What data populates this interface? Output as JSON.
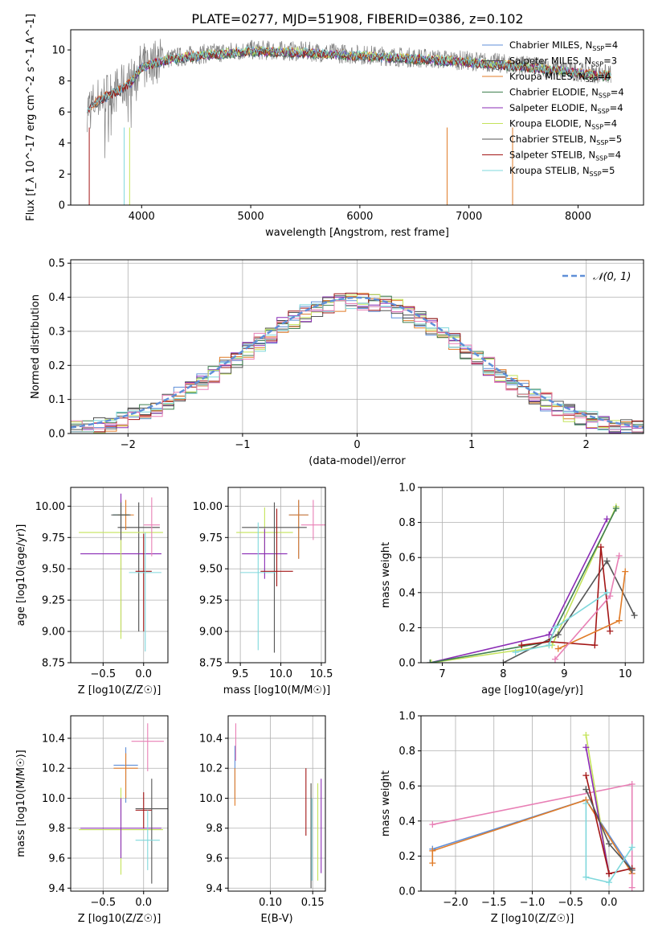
{
  "figure": {
    "title": "PLATE=0277, MJD=51908, FIBERID=0386, z=0.102"
  },
  "colors": {
    "Chabrier MILES": "#5f8fd8",
    "Salpeter MILES": "#4c4c4c",
    "Kroupa MILES": "#e07b27",
    "Chabrier ELODIE": "#3f7f4f",
    "Salpeter ELODIE": "#8a2bb5",
    "Kroupa ELODIE": "#c4e35a",
    "Chabrier STELIB": "#555555",
    "Salpeter STELIB": "#a31515",
    "Kroupa STELIB": "#7fd8dc",
    "pink": "#e87fb5",
    "data": "#808080",
    "normal": "#5f8fd8"
  },
  "chart_data": [
    {
      "id": "spectrum",
      "type": "line",
      "xlabel": "wavelength [Angstrom, rest frame]",
      "ylabel": "Flux [f_λ 10^-17 erg cm^-2 s^-1 A^-1]",
      "xlim": [
        3350,
        8600
      ],
      "ylim": [
        0,
        11.3
      ],
      "xticks": [
        4000,
        5000,
        6000,
        7000,
        8000
      ],
      "yticks": [
        0,
        2,
        4,
        6,
        8,
        10
      ],
      "legend_position": "right",
      "legend": [
        {
          "name": "Chabrier MILES",
          "nssp": "4"
        },
        {
          "name": "Salpeter MILES",
          "nssp": "3"
        },
        {
          "name": "Kroupa MILES",
          "nssp": "4"
        },
        {
          "name": "Chabrier ELODIE",
          "nssp": "4"
        },
        {
          "name": "Salpeter ELODIE",
          "nssp": "4"
        },
        {
          "name": "Kroupa ELODIE",
          "nssp": "4"
        },
        {
          "name": "Chabrier STELIB",
          "nssp": "5"
        },
        {
          "name": "Salpeter STELIB",
          "nssp": "4"
        },
        {
          "name": "Kroupa STELIB",
          "nssp": "5"
        }
      ],
      "continuum": {
        "x": [
          3500,
          3600,
          3700,
          3800,
          3900,
          4000,
          4200,
          4500,
          5000,
          5500,
          6000,
          6500,
          7000,
          7500,
          8000,
          8300
        ],
        "y": [
          6.2,
          6.8,
          7.2,
          7.5,
          8.0,
          9.0,
          9.4,
          9.7,
          10.0,
          9.9,
          9.7,
          9.5,
          9.3,
          9.0,
          8.6,
          8.4
        ]
      }
    },
    {
      "id": "residuals",
      "type": "line",
      "xlabel": "(data-model)/error",
      "ylabel": "Normed distribution",
      "xlim": [
        -2.5,
        2.5
      ],
      "ylim": [
        0,
        0.51
      ],
      "xticks": [
        -2,
        -1,
        0,
        1,
        2
      ],
      "yticks": [
        0.0,
        0.1,
        0.2,
        0.3,
        0.4,
        0.5
      ],
      "legend_label": "𝒩(0, 1)",
      "legend_position": "top-right"
    },
    {
      "id": "age-vs-z",
      "type": "scatter",
      "xlabel": "Z [log10(Z/Z☉)]",
      "ylabel": "age [log10(age/yr)]",
      "xlim": [
        -0.9,
        0.3
      ],
      "ylim": [
        8.75,
        10.15
      ],
      "xticks": [
        -0.5,
        0.0
      ],
      "yticks": [
        8.75,
        9.0,
        9.25,
        9.5,
        9.75,
        10.0
      ],
      "points": [
        {
          "series": "Chabrier MILES",
          "x": -0.28,
          "y": 9.93,
          "xerr": 0.1,
          "yerr": [
            0.12,
            0.12
          ]
        },
        {
          "series": "Salpeter MILES",
          "x": -0.06,
          "y": 9.83,
          "xerr": 0.26,
          "yerr": [
            0.83,
            0.2
          ]
        },
        {
          "series": "Kroupa MILES",
          "x": -0.22,
          "y": 9.93,
          "xerr": 0.1,
          "yerr": [
            0.12,
            0.12
          ]
        },
        {
          "series": "Chabrier ELODIE",
          "x": -0.28,
          "y": 9.93,
          "xerr": 0.1,
          "yerr": [
            0.12,
            0.12
          ]
        },
        {
          "series": "Salpeter ELODIE",
          "x": -0.28,
          "y": 9.62,
          "xerr": 0.5,
          "yerr": [
            0.62,
            0.48
          ]
        },
        {
          "series": "Kroupa ELODIE",
          "x": -0.28,
          "y": 9.79,
          "xerr": 0.52,
          "yerr": [
            0.85,
            0.2
          ]
        },
        {
          "series": "Chabrier STELIB",
          "x": -0.28,
          "y": 9.93,
          "xerr": 0.12,
          "yerr": [
            0.2,
            0.1
          ]
        },
        {
          "series": "Salpeter STELIB",
          "x": 0.0,
          "y": 9.48,
          "xerr": 0.1,
          "yerr": [
            0.48,
            0.3
          ]
        },
        {
          "series": "Kroupa STELIB",
          "x": 0.02,
          "y": 9.47,
          "xerr": 0.2,
          "yerr": [
            0.63,
            0.32
          ]
        },
        {
          "series": "pink",
          "x": 0.1,
          "y": 9.85,
          "xerr": 0.1,
          "yerr": [
            0.25,
            0.22
          ]
        }
      ]
    },
    {
      "id": "age-vs-mass",
      "type": "scatter",
      "xlabel": "mass [log10(M/M☉)]",
      "ylabel": "",
      "xlim": [
        9.35,
        10.55
      ],
      "ylim": [
        8.75,
        10.15
      ],
      "xticks": [
        9.5,
        10.0,
        10.5
      ],
      "yticks": [
        8.75,
        9.0,
        9.25,
        9.5,
        9.75,
        10.0
      ],
      "points": [
        {
          "series": "Chabrier MILES",
          "x": 10.22,
          "y": 9.93,
          "xerr": 0.12,
          "yerr": [
            0.35,
            0.12
          ]
        },
        {
          "series": "Kroupa MILES",
          "x": 10.22,
          "y": 9.93,
          "xerr": 0.12,
          "yerr": [
            0.35,
            0.12
          ]
        },
        {
          "series": "Kroupa ELODIE",
          "x": 9.8,
          "y": 9.79,
          "xerr": 0.35,
          "yerr": [
            0.2,
            0.2
          ]
        },
        {
          "series": "Salpeter ELODIE",
          "x": 9.8,
          "y": 9.62,
          "xerr": 0.28,
          "yerr": [
            0.2,
            0.2
          ]
        },
        {
          "series": "Chabrier STELIB",
          "x": 9.92,
          "y": 9.83,
          "xerr": 0.4,
          "yerr": [
            1.0,
            0.2
          ]
        },
        {
          "series": "Salpeter STELIB",
          "x": 9.95,
          "y": 9.48,
          "xerr": 0.2,
          "yerr": [
            0.12,
            0.5
          ]
        },
        {
          "series": "Kroupa STELIB",
          "x": 9.72,
          "y": 9.47,
          "xerr": 0.22,
          "yerr": [
            0.62,
            0.4
          ]
        },
        {
          "series": "pink",
          "x": 10.4,
          "y": 9.85,
          "xerr": 0.15,
          "yerr": [
            0.12,
            0.2
          ]
        }
      ]
    },
    {
      "id": "weights-vs-age",
      "type": "line",
      "xlabel": "age [log10(age/yr)]",
      "ylabel": "mass weight",
      "xlim": [
        6.65,
        10.3
      ],
      "ylim": [
        0,
        1.0
      ],
      "xticks": [
        7,
        8,
        9,
        10
      ],
      "yticks": [
        0.0,
        0.2,
        0.4,
        0.6,
        0.8,
        1.0
      ],
      "series": [
        {
          "color": "Salpeter ELODIE",
          "x": [
            6.8,
            8.75,
            9.7
          ],
          "y": [
            0.0,
            0.16,
            0.82
          ]
        },
        {
          "color": "Kroupa ELODIE",
          "x": [
            6.82,
            8.8,
            9.85
          ],
          "y": [
            0.0,
            0.1,
            0.89
          ]
        },
        {
          "color": "Chabrier ELODIE",
          "x": [
            6.8,
            8.75,
            9.85
          ],
          "y": [
            0.0,
            0.12,
            0.88
          ]
        },
        {
          "color": "Chabrier STELIB",
          "x": [
            8.0,
            8.9,
            9.7,
            10.15
          ],
          "y": [
            0.0,
            0.16,
            0.58,
            0.27
          ]
        },
        {
          "color": "Salpeter STELIB",
          "x": [
            8.3,
            8.75,
            9.5,
            9.6,
            9.75
          ],
          "y": [
            0.1,
            0.12,
            0.1,
            0.66,
            0.18
          ]
        },
        {
          "color": "Kroupa STELIB",
          "x": [
            8.2,
            8.75,
            8.85,
            9.7
          ],
          "y": [
            0.06,
            0.1,
            0.2,
            0.4
          ]
        },
        {
          "color": "Kroupa MILES",
          "x": [
            8.9,
            9.9,
            10.0
          ],
          "y": [
            0.08,
            0.24,
            0.52
          ]
        },
        {
          "color": "pink",
          "x": [
            8.85,
            9.75,
            9.9
          ],
          "y": [
            0.02,
            0.38,
            0.61
          ]
        }
      ]
    },
    {
      "id": "mass-vs-z",
      "type": "scatter",
      "xlabel": "Z [log10(Z/Z☉)]",
      "ylabel": "mass [log10(M/M☉)]",
      "xlim": [
        -0.9,
        0.3
      ],
      "ylim": [
        9.38,
        10.55
      ],
      "xticks": [
        -0.5,
        0.0
      ],
      "yticks": [
        9.4,
        9.6,
        9.8,
        10.0,
        10.2,
        10.4
      ],
      "points": [
        {
          "series": "Chabrier MILES",
          "x": -0.22,
          "y": 10.22,
          "xerr": 0.15,
          "yerr": [
            0.25,
            0.12
          ]
        },
        {
          "series": "Kroupa MILES",
          "x": -0.22,
          "y": 10.2,
          "xerr": 0.15,
          "yerr": [
            0.2,
            0.1
          ]
        },
        {
          "series": "Kroupa ELODIE",
          "x": -0.28,
          "y": 9.79,
          "xerr": 0.52,
          "yerr": [
            0.3,
            0.28
          ]
        },
        {
          "series": "Salpeter ELODIE",
          "x": -0.28,
          "y": 9.8,
          "xerr": 0.5,
          "yerr": [
            0.2,
            0.2
          ]
        },
        {
          "series": "Chabrier STELIB",
          "x": 0.1,
          "y": 9.93,
          "xerr": 0.2,
          "yerr": [
            0.5,
            0.2
          ]
        },
        {
          "series": "Salpeter STELIB",
          "x": 0.0,
          "y": 9.92,
          "xerr": 0.1,
          "yerr": [
            0.12,
            0.12
          ]
        },
        {
          "series": "Kroupa STELIB",
          "x": 0.05,
          "y": 9.72,
          "xerr": 0.15,
          "yerr": [
            0.2,
            0.2
          ]
        },
        {
          "series": "pink",
          "x": 0.05,
          "y": 10.38,
          "xerr": 0.2,
          "yerr": [
            0.2,
            0.12
          ]
        }
      ]
    },
    {
      "id": "mass-vs-ebv",
      "type": "scatter",
      "xlabel": "E(B-V)",
      "ylabel": "",
      "xlim": [
        0.05,
        0.165
      ],
      "ylim": [
        9.38,
        10.55
      ],
      "xticks": [
        0.1,
        0.15
      ],
      "yticks": [
        9.4,
        9.6,
        9.8,
        10.0,
        10.2,
        10.4
      ],
      "points": [
        {
          "series": "Chabrier MILES",
          "x": 0.058,
          "y": 10.2,
          "yerr": [
            0.2,
            0.15
          ]
        },
        {
          "series": "Kroupa MILES",
          "x": 0.058,
          "y": 10.05,
          "yerr": [
            0.1,
            0.15
          ]
        },
        {
          "series": "pink",
          "x": 0.059,
          "y": 10.4,
          "yerr": [
            0.15,
            0.1
          ]
        },
        {
          "series": "Salpeter STELIB",
          "x": 0.142,
          "y": 9.95,
          "yerr": [
            0.2,
            0.25
          ]
        },
        {
          "series": "Chabrier STELIB",
          "x": 0.148,
          "y": 9.8,
          "yerr": [
            0.4,
            0.3
          ]
        },
        {
          "series": "Kroupa STELIB",
          "x": 0.149,
          "y": 9.7,
          "yerr": [
            0.25,
            0.3
          ]
        },
        {
          "series": "Kroupa ELODIE",
          "x": 0.156,
          "y": 9.75,
          "yerr": [
            0.3,
            0.35
          ]
        },
        {
          "series": "Salpeter ELODIE",
          "x": 0.16,
          "y": 9.8,
          "yerr": [
            0.3,
            0.33
          ]
        }
      ]
    },
    {
      "id": "weights-vs-z",
      "type": "line",
      "xlabel": "Z [log10(Z/Z☉)]",
      "ylabel": "mass weight",
      "xlim": [
        -2.45,
        0.45
      ],
      "ylim": [
        0,
        1.0
      ],
      "xticks": [
        -2.0,
        -1.5,
        -1.0,
        -0.5,
        0.0
      ],
      "yticks": [
        0.0,
        0.2,
        0.4,
        0.6,
        0.8,
        1.0
      ],
      "series": [
        {
          "color": "Chabrier MILES",
          "x": [
            -2.3,
            -0.3,
            0.3
          ],
          "y": [
            0.24,
            0.52,
            0.12
          ]
        },
        {
          "color": "Kroupa MILES",
          "x": [
            -2.3,
            -2.3,
            -0.3,
            0.3
          ],
          "y": [
            0.16,
            0.23,
            0.52,
            0.1
          ]
        },
        {
          "color": "pink",
          "x": [
            -2.3,
            0.3,
            0.3
          ],
          "y": [
            0.38,
            0.61,
            0.02
          ]
        },
        {
          "color": "Kroupa ELODIE",
          "x": [
            -0.3,
            0.0
          ],
          "y": [
            0.89,
            0.1
          ]
        },
        {
          "color": "Salpeter ELODIE",
          "x": [
            -0.3,
            0.0
          ],
          "y": [
            0.82,
            0.1
          ]
        },
        {
          "color": "Salpeter STELIB",
          "x": [
            -0.3,
            0.0,
            0.3
          ],
          "y": [
            0.66,
            0.1,
            0.13
          ]
        },
        {
          "color": "Chabrier STELIB",
          "x": [
            -0.3,
            0.0,
            0.3
          ],
          "y": [
            0.58,
            0.27,
            0.12
          ]
        },
        {
          "color": "Kroupa STELIB",
          "x": [
            -0.3,
            -0.3,
            0.0,
            0.3
          ],
          "y": [
            0.5,
            0.08,
            0.05,
            0.25
          ]
        }
      ]
    }
  ]
}
